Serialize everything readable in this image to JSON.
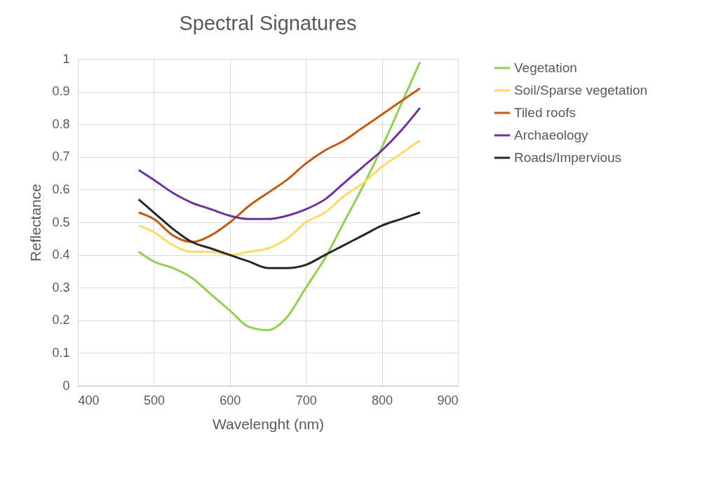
{
  "chart_data": {
    "type": "line",
    "title": "Spectral Signatures",
    "xlabel": "Wavelenght (nm)",
    "ylabel": "Reflectance",
    "x": [
      480,
      500,
      525,
      550,
      575,
      600,
      625,
      650,
      675,
      700,
      725,
      750,
      775,
      800,
      825,
      850
    ],
    "series": [
      {
        "name": "Vegetation",
        "color": "#92d050",
        "values": [
          0.41,
          0.38,
          0.36,
          0.33,
          0.28,
          0.23,
          0.18,
          0.17,
          0.21,
          0.3,
          0.39,
          0.5,
          0.61,
          0.73,
          0.86,
          0.99
        ]
      },
      {
        "name": "Soil/Sparse vegetation",
        "color": "#ffd966",
        "values": [
          0.49,
          0.47,
          0.43,
          0.41,
          0.41,
          0.4,
          0.41,
          0.42,
          0.45,
          0.5,
          0.53,
          0.58,
          0.62,
          0.67,
          0.71,
          0.75
        ]
      },
      {
        "name": "Tiled roofs",
        "color": "#c55a11",
        "values": [
          0.53,
          0.51,
          0.46,
          0.44,
          0.46,
          0.5,
          0.55,
          0.59,
          0.63,
          0.68,
          0.72,
          0.75,
          0.79,
          0.83,
          0.87,
          0.91
        ]
      },
      {
        "name": "Archaeology",
        "color": "#7030a0",
        "values": [
          0.66,
          0.63,
          0.59,
          0.56,
          0.54,
          0.52,
          0.51,
          0.51,
          0.52,
          0.54,
          0.57,
          0.62,
          0.67,
          0.72,
          0.78,
          0.85
        ]
      },
      {
        "name": "Roads/Impervious",
        "color": "#262626",
        "values": [
          0.57,
          0.53,
          0.48,
          0.44,
          0.42,
          0.4,
          0.38,
          0.36,
          0.36,
          0.37,
          0.4,
          0.43,
          0.46,
          0.49,
          0.51,
          0.53
        ]
      }
    ],
    "xlim": [
      400,
      900
    ],
    "xticks": [
      400,
      500,
      600,
      700,
      800,
      900
    ],
    "ylim": [
      0,
      1
    ],
    "yticks": [
      0,
      0.1,
      0.2,
      0.3,
      0.4,
      0.5,
      0.6,
      0.7,
      0.8,
      0.9,
      1
    ],
    "grid": true,
    "legend": "right",
    "marker": "none",
    "line_style": "solid"
  }
}
